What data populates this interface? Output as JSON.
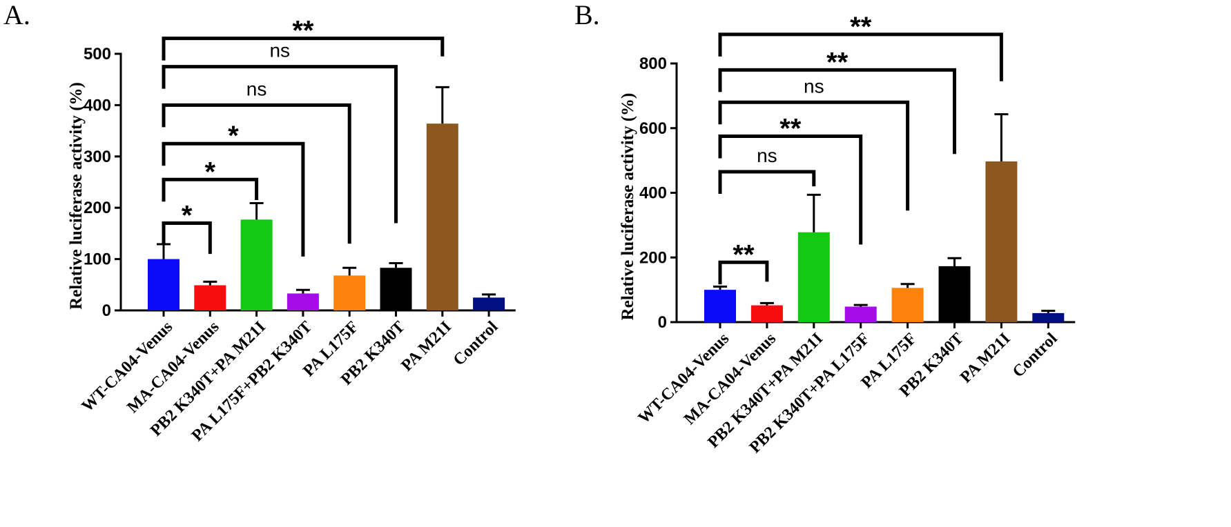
{
  "chart_data": [
    {
      "type": "bar",
      "panel": "A.",
      "ylabel": "Relative luciferase activity (%)",
      "ylim": [
        0,
        500
      ],
      "yticks": [
        0,
        100,
        200,
        300,
        400,
        500
      ],
      "categories": [
        "WT-CA04-Venus",
        "MA-CA04-Venus",
        "PB2 K340T+PA M21I",
        "PA L175F+PB2 K340T",
        "PA L175F",
        "PB2 K340T",
        "PA M21I",
        "Control"
      ],
      "values": [
        100,
        49,
        177,
        33,
        68,
        83,
        364,
        25
      ],
      "errors": [
        29,
        7,
        32,
        7,
        15,
        9,
        71,
        6
      ],
      "colors": [
        "#0b0bf7",
        "#f70d0d",
        "#13c913",
        "#a50ce8",
        "#fb820b",
        "#000000",
        "#8c5820",
        "#020f82"
      ],
      "comparisons": [
        {
          "to": 1,
          "label": "*",
          "y": 170,
          "end": 110
        },
        {
          "to": 2,
          "label": "*",
          "y": 255,
          "end": 215
        },
        {
          "to": 3,
          "label": "*",
          "y": 325,
          "end": 105
        },
        {
          "to": 4,
          "label": "ns",
          "y": 400,
          "end": 130
        },
        {
          "to": 5,
          "label": "ns",
          "y": 475,
          "end": 170
        },
        {
          "to": 6,
          "label": "**",
          "y": 530,
          "end": 495
        }
      ]
    },
    {
      "type": "bar",
      "panel": "B.",
      "ylabel": "Relative luciferase activity (%)",
      "ylim": [
        0,
        800
      ],
      "yticks": [
        0,
        200,
        400,
        600,
        800
      ],
      "categories": [
        "WT-CA04-Venus",
        "MA-CA04-Venus",
        "PB2 K340T+PA M21I",
        "PB2 K340T+PA L175F",
        "PA L175F",
        "PB2 K340T",
        "PA M21I",
        "Control"
      ],
      "values": [
        100,
        52,
        278,
        48,
        106,
        173,
        497,
        28
      ],
      "errors": [
        10,
        7,
        116,
        5,
        12,
        25,
        146,
        7
      ],
      "colors": [
        "#0b0bf7",
        "#f70d0d",
        "#13c913",
        "#a50ce8",
        "#fb820b",
        "#000000",
        "#8c5820",
        "#020f82"
      ],
      "comparisons": [
        {
          "to": 1,
          "label": "**",
          "y": 185,
          "end": 125
        },
        {
          "to": 2,
          "label": "ns",
          "y": 465,
          "end": 420
        },
        {
          "to": 3,
          "label": "**",
          "y": 575,
          "end": 240
        },
        {
          "to": 4,
          "label": "ns",
          "y": 680,
          "end": 345
        },
        {
          "to": 5,
          "label": "**",
          "y": 780,
          "end": 520
        },
        {
          "to": 6,
          "label": "**",
          "y": 890,
          "end": 745
        }
      ]
    }
  ]
}
